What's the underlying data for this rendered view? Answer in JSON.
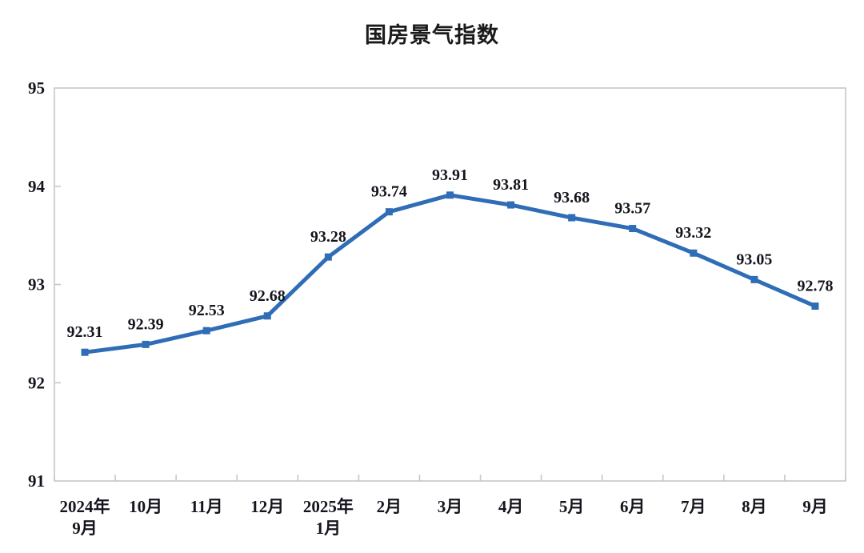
{
  "page": {
    "background": "#ffffff"
  },
  "chart_data": {
    "type": "line",
    "title": "国房景气指数",
    "categories": [
      "2024年\n9月",
      "10月",
      "11月",
      "12月",
      "2025年\n1月",
      "2月",
      "3月",
      "4月",
      "5月",
      "6月",
      "7月",
      "8月",
      "9月"
    ],
    "values": [
      92.31,
      92.39,
      92.53,
      92.68,
      93.28,
      93.74,
      93.91,
      93.81,
      93.68,
      93.57,
      93.32,
      93.05,
      92.78
    ],
    "xlabel": "",
    "ylabel": "",
    "ylim": [
      91,
      95
    ],
    "yticks": [
      91,
      92,
      93,
      94,
      95
    ],
    "grid": false,
    "legend_position": "none",
    "data_labels": true,
    "marker": "square",
    "line_color": "#2F6DB6",
    "axis_line_color": "#c7c7c7",
    "label_color": "#15151e"
  }
}
